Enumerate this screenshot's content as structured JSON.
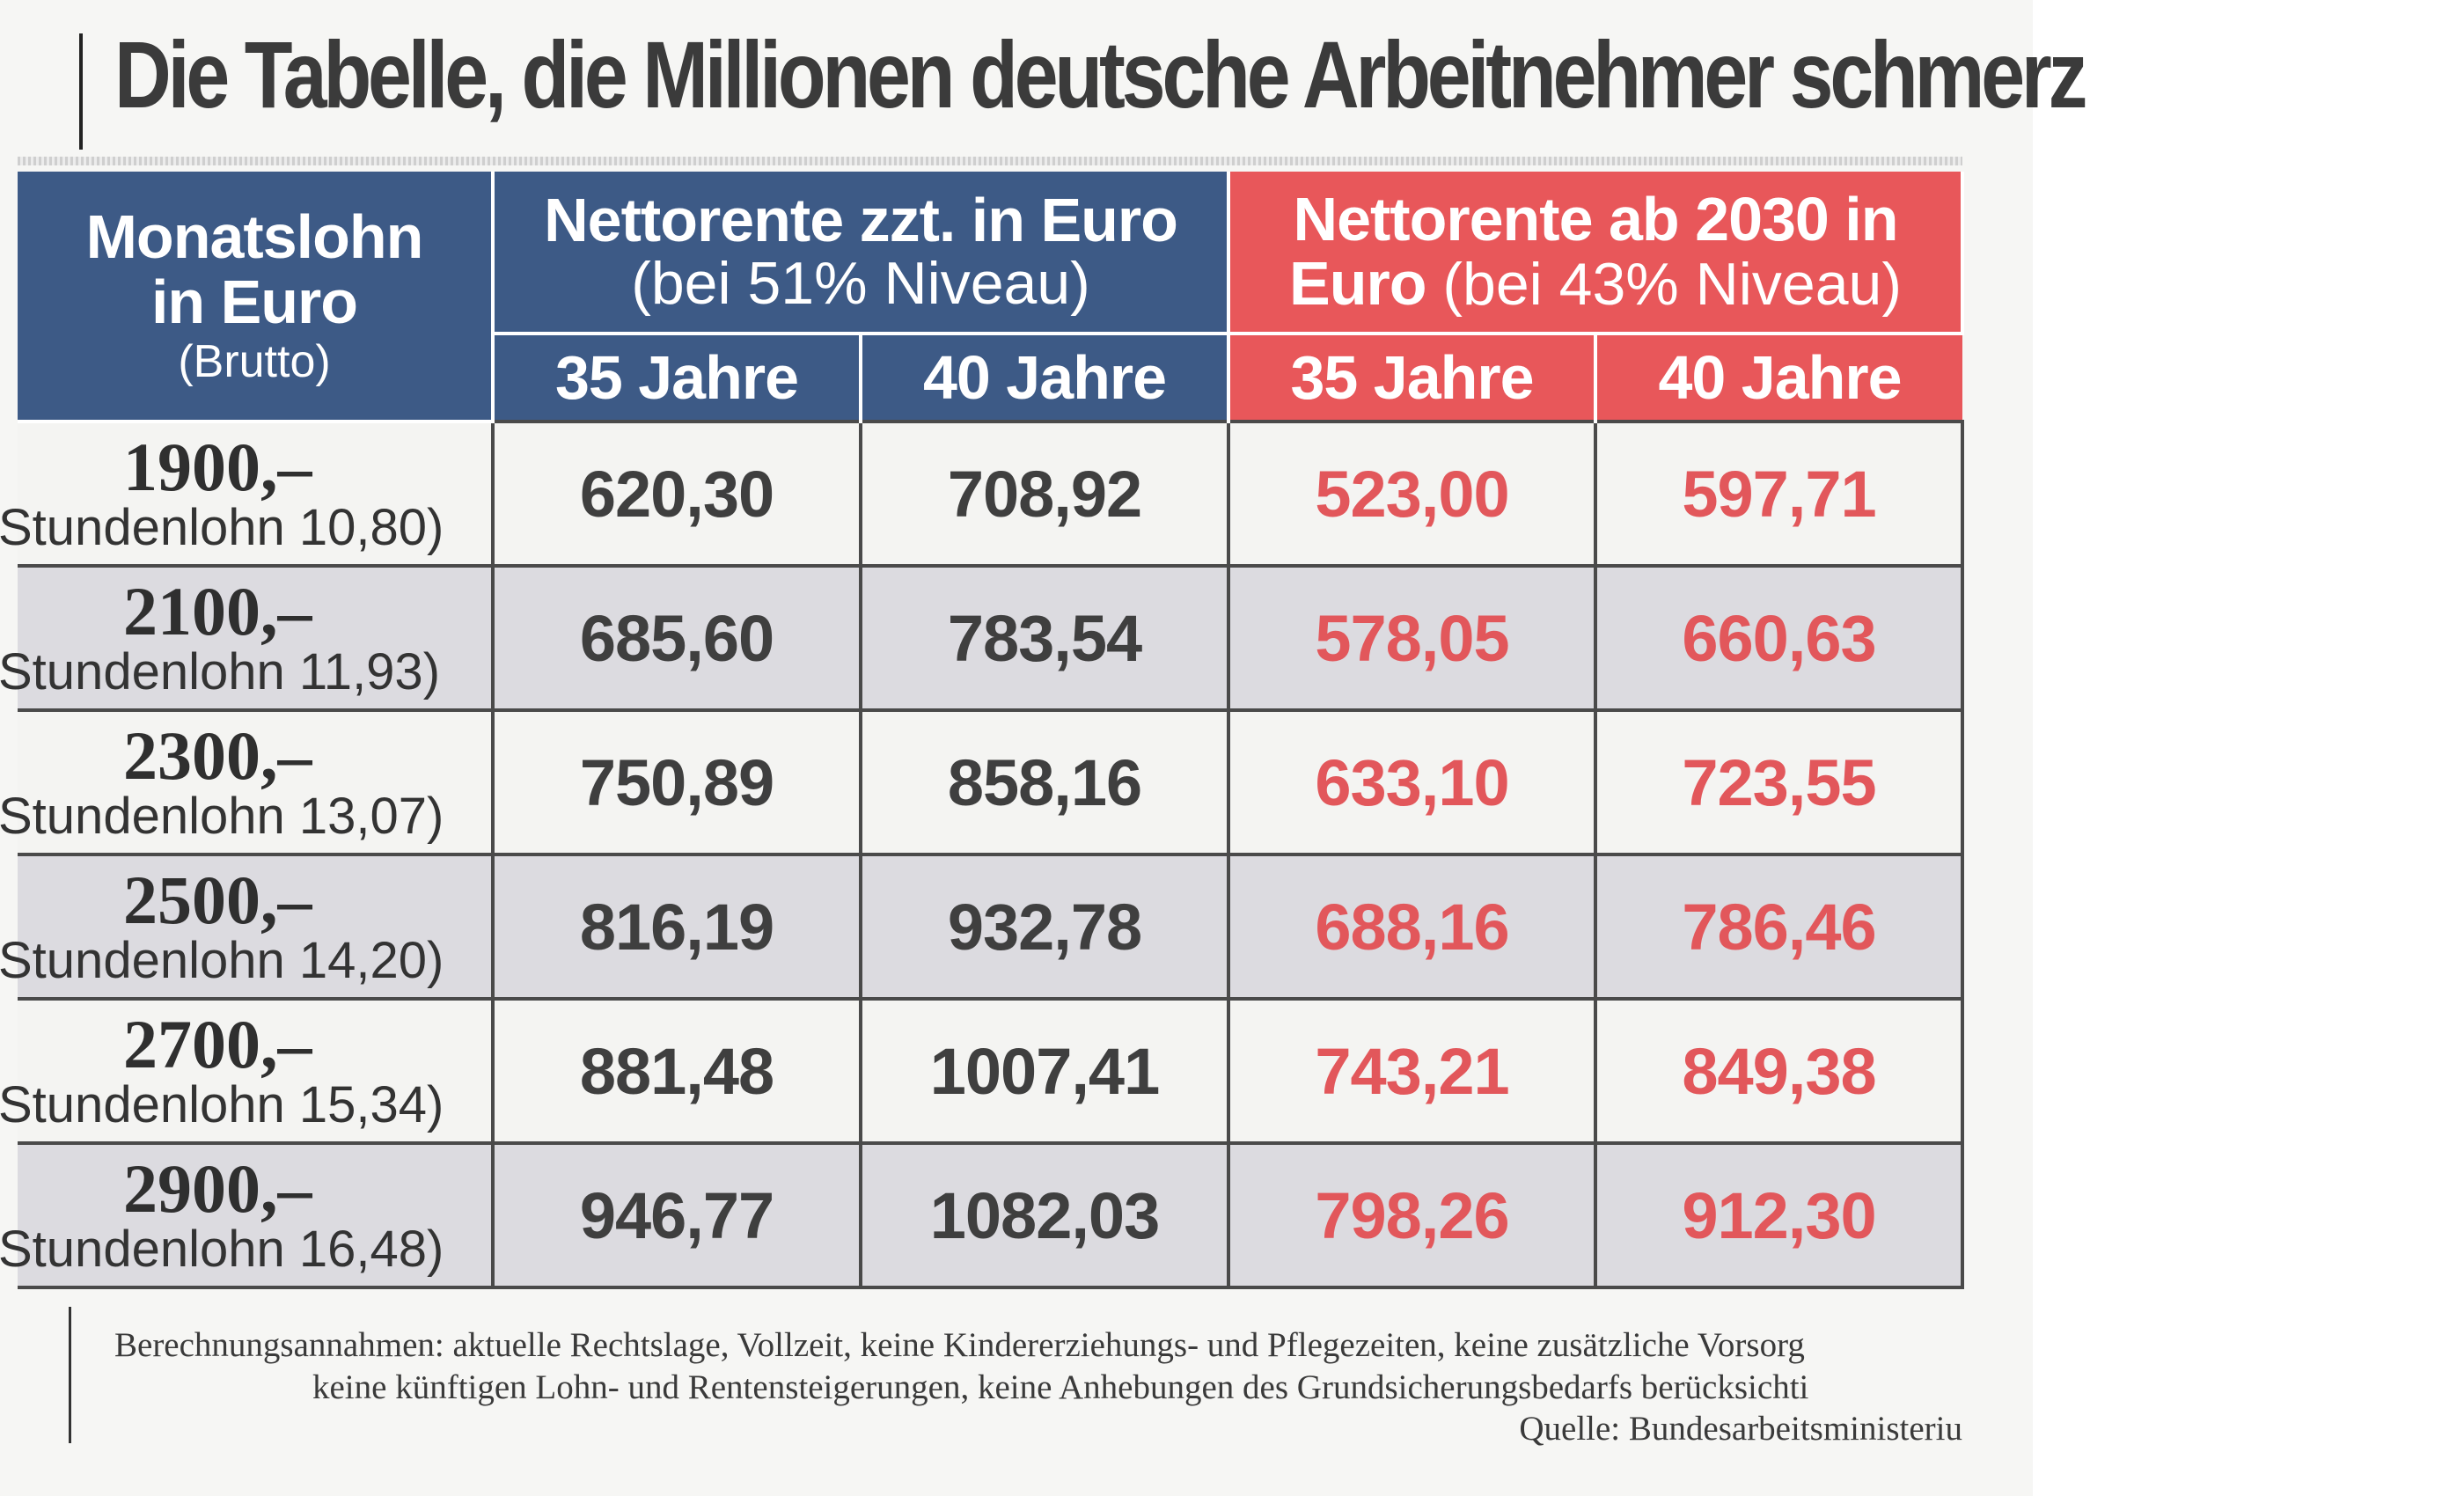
{
  "title": "Die Tabelle, die Millionen deutsche Arbeitnehmer schmerz",
  "table": {
    "col_lohn": {
      "line1": "Monatslohn",
      "line2": "in Euro",
      "line3": "(Brutto)"
    },
    "group_current": {
      "line1": "Nettorente zzt. in Euro",
      "line2": "(bei 51% Niveau)"
    },
    "group_future": {
      "line1": "Nettorente ab 2030 in",
      "line2_bold": "Euro",
      "line2_rest": " (bei 43% Niveau)"
    },
    "sub_35": "35 Jahre",
    "sub_40": "40 Jahre",
    "rows": [
      {
        "lohn": "1900,–",
        "stunde": "Stundenlohn 10,80)",
        "cur35": "620,30",
        "cur40": "708,92",
        "fut35": "523,00",
        "fut40": "597,71"
      },
      {
        "lohn": "2100,–",
        "stunde": "Stundenlohn 11,93)",
        "cur35": "685,60",
        "cur40": "783,54",
        "fut35": "578,05",
        "fut40": "660,63"
      },
      {
        "lohn": "2300,–",
        "stunde": "Stundenlohn 13,07)",
        "cur35": "750,89",
        "cur40": "858,16",
        "fut35": "633,10",
        "fut40": "723,55"
      },
      {
        "lohn": "2500,–",
        "stunde": "Stundenlohn 14,20)",
        "cur35": "816,19",
        "cur40": "932,78",
        "fut35": "688,16",
        "fut40": "786,46"
      },
      {
        "lohn": "2700,–",
        "stunde": "Stundenlohn 15,34)",
        "cur35": "881,48",
        "cur40": "1007,41",
        "fut35": "743,21",
        "fut40": "849,38"
      },
      {
        "lohn": "2900,–",
        "stunde": "Stundenlohn 16,48)",
        "cur35": "946,77",
        "cur40": "1082,03",
        "fut35": "798,26",
        "fut40": "912,30"
      }
    ]
  },
  "footnote": {
    "line1": "Berechnungsannahmen: aktuelle Rechtslage, Vollzeit, keine Kindererziehungs- und Pflegezeiten, keine zusätzliche Vorsorg",
    "line2": "keine künftigen Lohn- und Rentensteigerungen, keine Anhebungen des Grundsicherungsbedarfs berücksichti",
    "line3": "Quelle: Bundesarbeitsministeriu"
  },
  "colors": {
    "header_blue": "#3d5a86",
    "header_red": "#e8575a",
    "value_red": "#e2575b",
    "value_gray": "#3f3f3f"
  }
}
